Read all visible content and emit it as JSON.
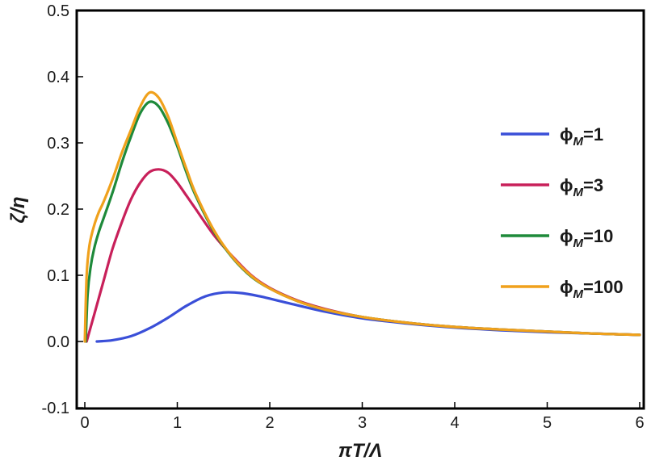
{
  "chart_data": {
    "type": "line",
    "xlabel": "πT/Λ",
    "ylabel": "ζ/η",
    "xlim": [
      -0.1,
      6.0
    ],
    "ylim": [
      -0.1,
      0.5
    ],
    "x_ticks": [
      "0",
      "1",
      "2",
      "3",
      "4",
      "5",
      "6"
    ],
    "y_ticks": [
      "-0.1",
      "0.0",
      "0.1",
      "0.2",
      "0.3",
      "0.4",
      "0.5"
    ],
    "grid": false,
    "legend_position": "right",
    "series": [
      {
        "name": "ϕM=1",
        "legend_main": "ϕ",
        "legend_sub": "M",
        "legend_value": "=1",
        "color": "#3a4fd8",
        "x": [
          0.13,
          0.3,
          0.5,
          0.7,
          0.9,
          1.1,
          1.3,
          1.5,
          1.7,
          1.9,
          2.2,
          2.6,
          3.0,
          3.5,
          4.0,
          4.5,
          5.0,
          5.5,
          6.0
        ],
        "y": [
          0.0,
          0.002,
          0.008,
          0.02,
          0.036,
          0.054,
          0.068,
          0.074,
          0.073,
          0.068,
          0.058,
          0.045,
          0.035,
          0.027,
          0.021,
          0.017,
          0.014,
          0.012,
          0.01
        ]
      },
      {
        "name": "ϕM=3",
        "legend_main": "ϕ",
        "legend_sub": "M",
        "legend_value": "=3",
        "color": "#c8205a",
        "x": [
          0.02,
          0.1,
          0.2,
          0.3,
          0.4,
          0.5,
          0.6,
          0.7,
          0.8,
          0.9,
          1.0,
          1.1,
          1.2,
          1.4,
          1.6,
          1.8,
          2.0,
          2.3,
          2.6,
          3.0,
          3.5,
          4.0,
          4.5,
          5.0,
          5.5,
          6.0
        ],
        "y": [
          0.0,
          0.04,
          0.09,
          0.14,
          0.18,
          0.215,
          0.24,
          0.256,
          0.26,
          0.255,
          0.24,
          0.22,
          0.2,
          0.16,
          0.128,
          0.1,
          0.081,
          0.062,
          0.049,
          0.037,
          0.028,
          0.022,
          0.018,
          0.015,
          0.012,
          0.01
        ]
      },
      {
        "name": "ϕM=10",
        "legend_main": "ϕ",
        "legend_sub": "M",
        "legend_value": "=10",
        "color": "#1e8a3a",
        "x": [
          0.01,
          0.03,
          0.06,
          0.1,
          0.15,
          0.2,
          0.3,
          0.4,
          0.5,
          0.6,
          0.7,
          0.8,
          0.9,
          1.0,
          1.1,
          1.2,
          1.4,
          1.6,
          1.8,
          2.0,
          2.3,
          2.6,
          3.0,
          3.5,
          4.0,
          4.5,
          5.0,
          5.5,
          6.0
        ],
        "y": [
          0.0,
          0.07,
          0.11,
          0.14,
          0.165,
          0.185,
          0.225,
          0.27,
          0.31,
          0.345,
          0.362,
          0.355,
          0.33,
          0.295,
          0.255,
          0.22,
          0.165,
          0.126,
          0.098,
          0.08,
          0.061,
          0.048,
          0.037,
          0.028,
          0.022,
          0.018,
          0.015,
          0.012,
          0.01
        ]
      },
      {
        "name": "ϕM=100",
        "legend_main": "ϕ",
        "legend_sub": "M",
        "legend_value": "=100",
        "color": "#f0a11c",
        "x": [
          0.0,
          0.02,
          0.05,
          0.1,
          0.15,
          0.2,
          0.3,
          0.4,
          0.5,
          0.6,
          0.7,
          0.8,
          0.9,
          1.0,
          1.1,
          1.2,
          1.4,
          1.6,
          1.8,
          2.0,
          2.3,
          2.6,
          3.0,
          3.5,
          4.0,
          4.5,
          5.0,
          5.5,
          6.0
        ],
        "y": [
          0.0,
          0.1,
          0.145,
          0.175,
          0.195,
          0.21,
          0.245,
          0.285,
          0.32,
          0.355,
          0.376,
          0.368,
          0.34,
          0.3,
          0.26,
          0.223,
          0.167,
          0.127,
          0.099,
          0.08,
          0.061,
          0.048,
          0.037,
          0.028,
          0.022,
          0.018,
          0.015,
          0.012,
          0.01
        ]
      }
    ]
  }
}
